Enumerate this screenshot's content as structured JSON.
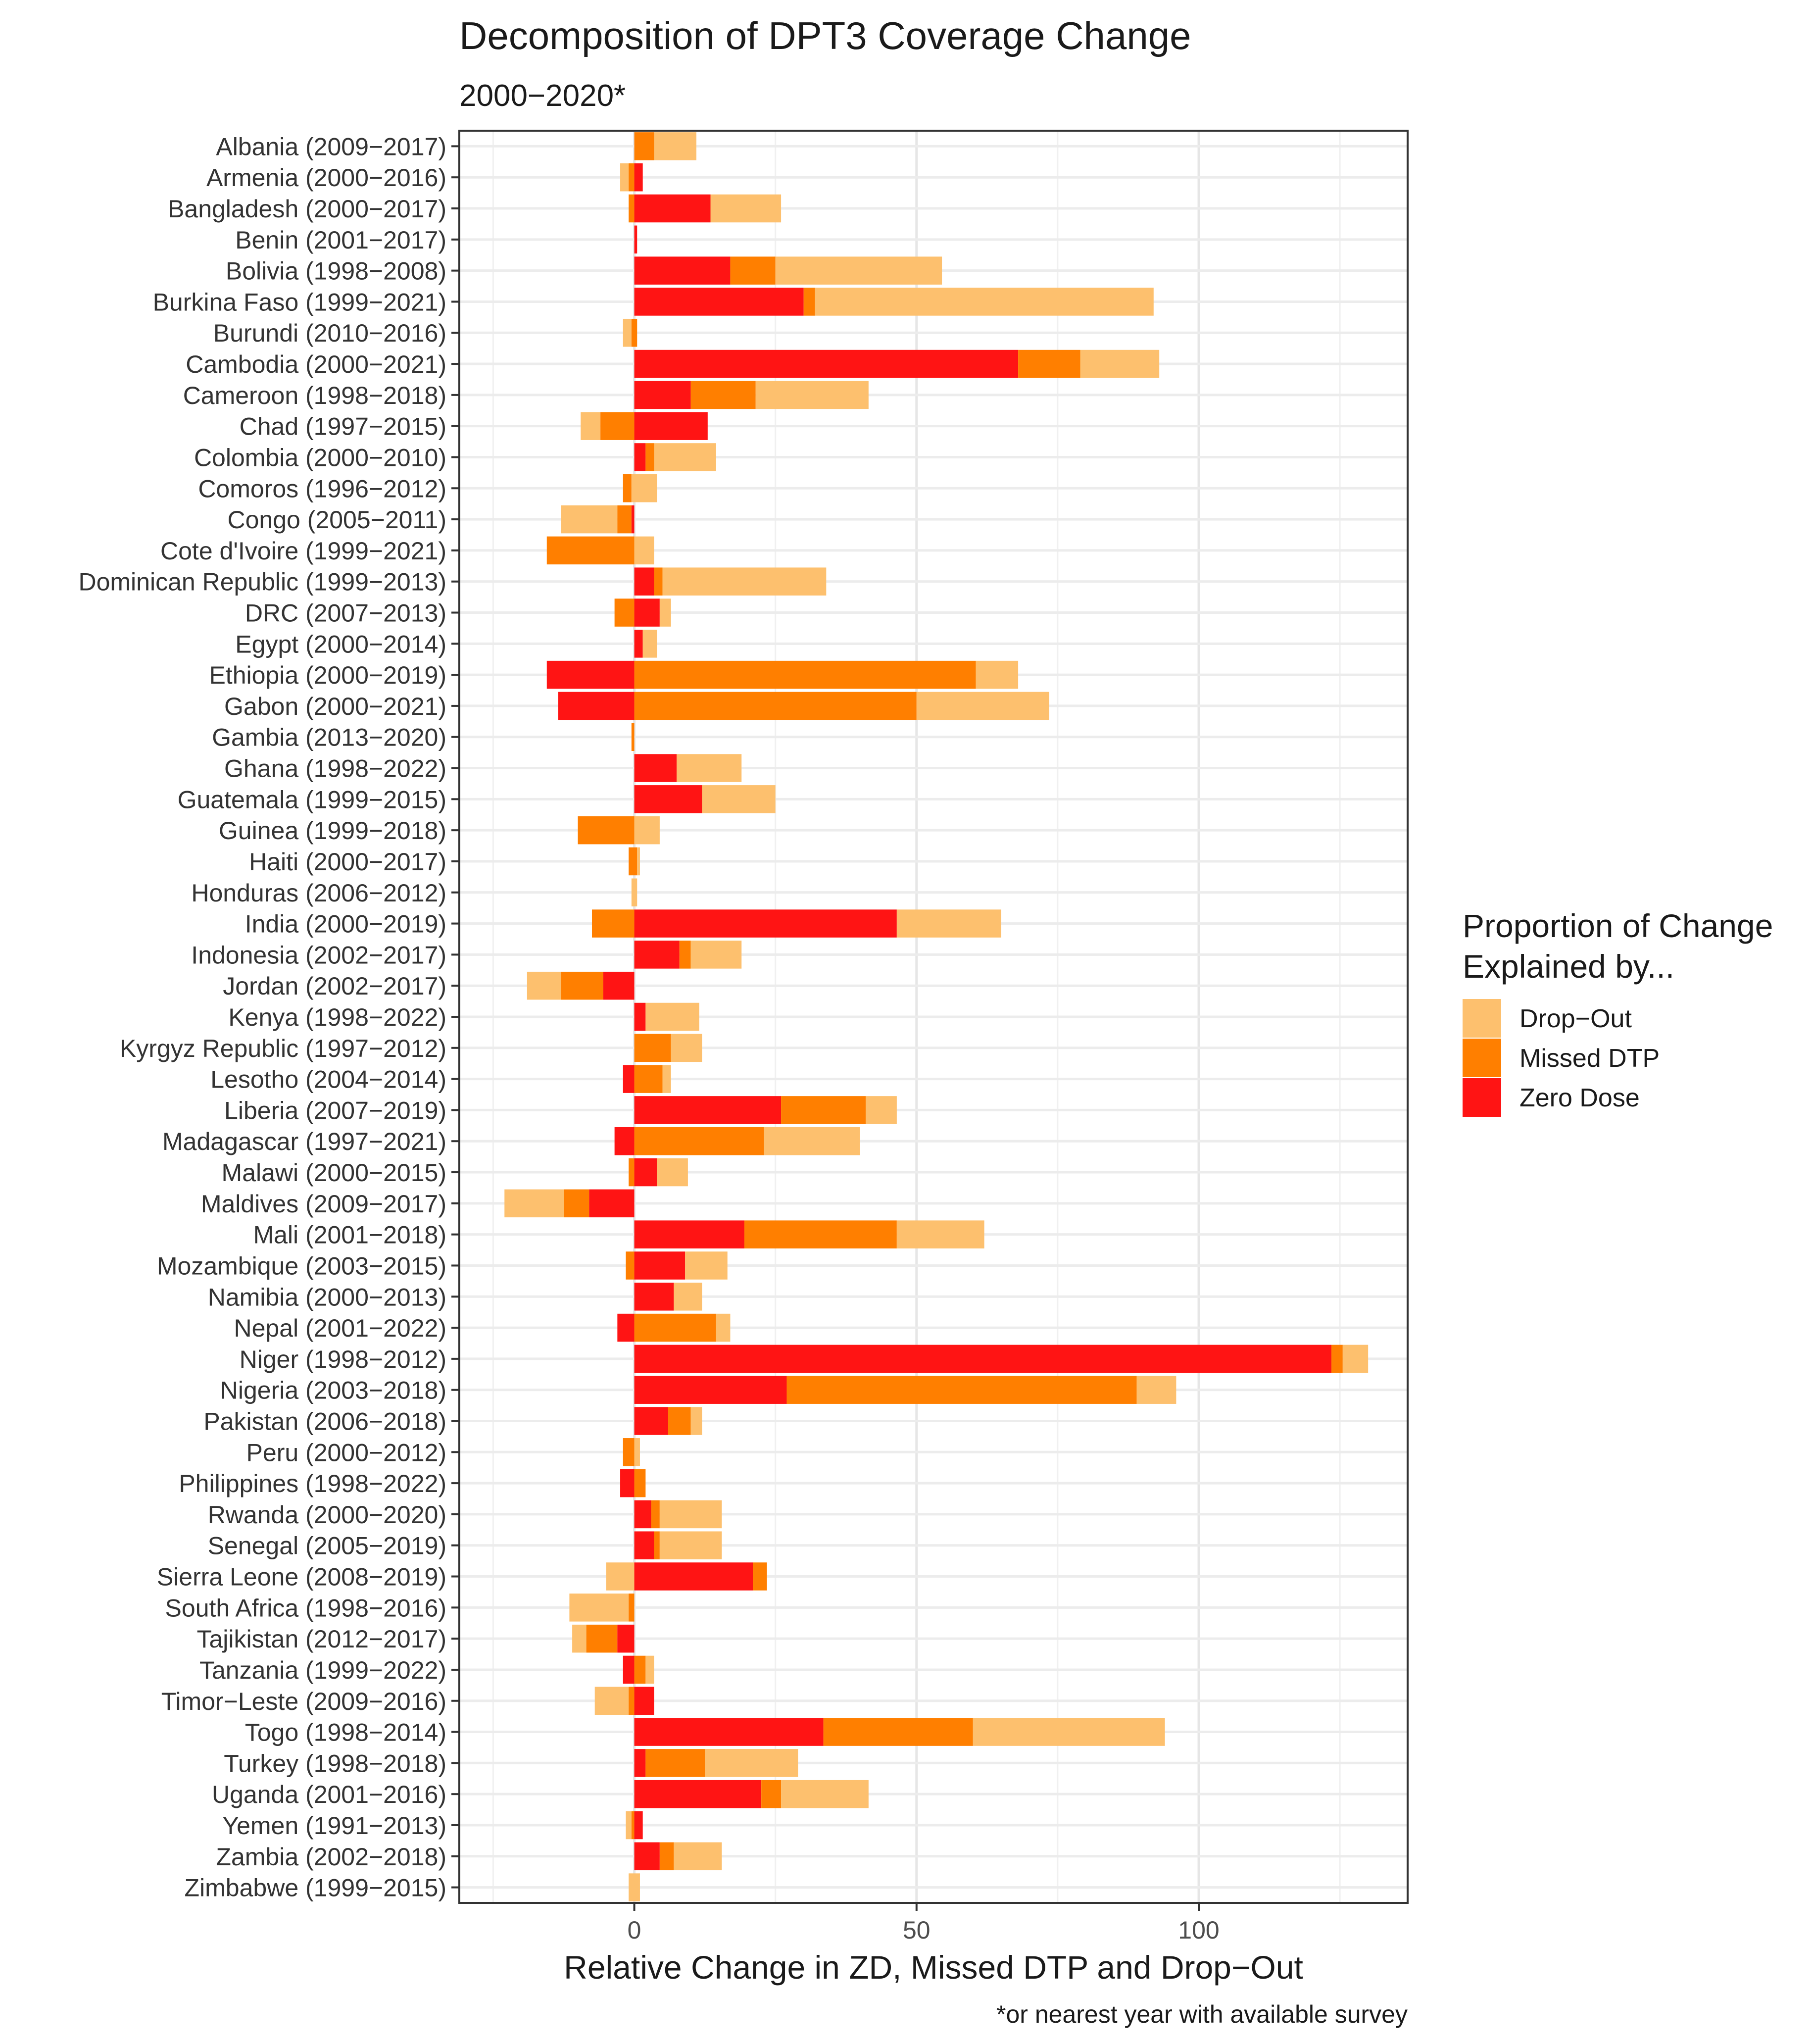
{
  "chart_data": {
    "type": "bar",
    "orientation": "horizontal",
    "stacked": true,
    "title": "Decomposition of DPT3 Coverage Change",
    "subtitle": "2000−2020*",
    "xlabel": "Relative Change in ZD, Missed DTP and Drop−Out",
    "ylabel": "",
    "caption": "*or nearest year with available survey",
    "xlim": [
      -31,
      137
    ],
    "x_ticks": [
      0,
      50,
      100
    ],
    "x_tick_labels": [
      "0",
      "50",
      "100"
    ],
    "grid": true,
    "legend": {
      "title_line1": "Proportion of Change",
      "title_line2": "Explained by...",
      "placement": "right",
      "entries": [
        {
          "label": "Drop−Out",
          "color": "#FDC06E"
        },
        {
          "label": "Missed DTP",
          "color": "#FF7F00"
        },
        {
          "label": "Zero Dose",
          "color": "#FF1414"
        }
      ]
    },
    "series": [
      {
        "name": "Zero Dose",
        "color": "#FF1414"
      },
      {
        "name": "Missed DTP",
        "color": "#FF7F00"
      },
      {
        "name": "Drop−Out",
        "color": "#FDC06E"
      }
    ],
    "categories": [
      "Albania (2009−2017)",
      "Armenia (2000−2016)",
      "Bangladesh (2000−2017)",
      "Benin (2001−2017)",
      "Bolivia (1998−2008)",
      "Burkina Faso (1999−2021)",
      "Burundi (2010−2016)",
      "Cambodia (2000−2021)",
      "Cameroon (1998−2018)",
      "Chad (1997−2015)",
      "Colombia (2000−2010)",
      "Comoros (1996−2012)",
      "Congo (2005−2011)",
      "Cote d'Ivoire (1999−2021)",
      "Dominican Republic (1999−2013)",
      "DRC (2007−2013)",
      "Egypt (2000−2014)",
      "Ethiopia (2000−2019)",
      "Gabon (2000−2021)",
      "Gambia (2013−2020)",
      "Ghana (1998−2022)",
      "Guatemala (1999−2015)",
      "Guinea (1999−2018)",
      "Haiti (2000−2017)",
      "Honduras (2006−2012)",
      "India (2000−2019)",
      "Indonesia (2002−2017)",
      "Jordan (2002−2017)",
      "Kenya (1998−2022)",
      "Kyrgyz Republic (1997−2012)",
      "Lesotho (2004−2014)",
      "Liberia (2007−2019)",
      "Madagascar (1997−2021)",
      "Malawi (2000−2015)",
      "Maldives (2009−2017)",
      "Mali (2001−2018)",
      "Mozambique (2003−2015)",
      "Namibia (2000−2013)",
      "Nepal (2001−2022)",
      "Niger (1998−2012)",
      "Nigeria (2003−2018)",
      "Pakistan (2006−2018)",
      "Peru (2000−2012)",
      "Philippines (1998−2022)",
      "Rwanda (2000−2020)",
      "Senegal (2005−2019)",
      "Sierra Leone (2008−2019)",
      "South Africa (1998−2016)",
      "Tajikistan (2012−2017)",
      "Tanzania (1999−2022)",
      "Timor−Leste (2009−2016)",
      "Togo (1998−2014)",
      "Turkey (1998−2018)",
      "Uganda (2001−2016)",
      "Yemen (1991−2013)",
      "Zambia (2002−2018)",
      "Zimbabwe (1999−2015)"
    ],
    "segments": [
      [
        [
          "Missed DTP",
          0,
          3.5
        ],
        [
          "Drop−Out",
          3.5,
          11
        ]
      ],
      [
        [
          "Drop−Out",
          -2.5,
          -1
        ],
        [
          "Missed DTP",
          -1,
          0
        ],
        [
          "Zero Dose",
          0,
          1.5
        ]
      ],
      [
        [
          "Missed DTP",
          -1,
          0
        ],
        [
          "Zero Dose",
          0,
          13.5
        ],
        [
          "Drop−Out",
          13.5,
          26
        ]
      ],
      [
        [
          "Zero Dose",
          0,
          0.5
        ]
      ],
      [
        [
          "Zero Dose",
          0,
          17
        ],
        [
          "Missed DTP",
          17,
          25
        ],
        [
          "Drop−Out",
          25,
          54.5
        ]
      ],
      [
        [
          "Zero Dose",
          0,
          30
        ],
        [
          "Missed DTP",
          30,
          32
        ],
        [
          "Drop−Out",
          32,
          92
        ]
      ],
      [
        [
          "Drop−Out",
          -2,
          -0.5
        ],
        [
          "Missed DTP",
          -0.5,
          0.5
        ]
      ],
      [
        [
          "Zero Dose",
          0,
          68
        ],
        [
          "Missed DTP",
          68,
          79
        ],
        [
          "Drop−Out",
          79,
          93
        ]
      ],
      [
        [
          "Zero Dose",
          0,
          10
        ],
        [
          "Missed DTP",
          10,
          21.5
        ],
        [
          "Drop−Out",
          21.5,
          41.5
        ]
      ],
      [
        [
          "Drop−Out",
          -9.5,
          -6
        ],
        [
          "Missed DTP",
          -6,
          0
        ],
        [
          "Zero Dose",
          0,
          13
        ]
      ],
      [
        [
          "Zero Dose",
          0,
          2
        ],
        [
          "Missed DTP",
          2,
          3.5
        ],
        [
          "Drop−Out",
          3.5,
          14.5
        ]
      ],
      [
        [
          "Missed DTP",
          -2,
          -0.5
        ],
        [
          "Drop−Out",
          -0.5,
          4
        ]
      ],
      [
        [
          "Drop−Out",
          -13,
          -3
        ],
        [
          "Missed DTP",
          -3,
          -0.5
        ],
        [
          "Zero Dose",
          -0.5,
          0
        ]
      ],
      [
        [
          "Missed DTP",
          -15.5,
          0
        ],
        [
          "Drop−Out",
          0,
          3.5
        ]
      ],
      [
        [
          "Zero Dose",
          0,
          3.5
        ],
        [
          "Missed DTP",
          3.5,
          5
        ],
        [
          "Drop−Out",
          5,
          34
        ]
      ],
      [
        [
          "Missed DTP",
          -3.5,
          0
        ],
        [
          "Zero Dose",
          0,
          4.5
        ],
        [
          "Drop−Out",
          4.5,
          6.5
        ]
      ],
      [
        [
          "Zero Dose",
          0,
          1.5
        ],
        [
          "Drop−Out",
          1.5,
          4
        ]
      ],
      [
        [
          "Zero Dose",
          -15.5,
          0
        ],
        [
          "Missed DTP",
          0,
          60.5
        ],
        [
          "Drop−Out",
          60.5,
          68
        ]
      ],
      [
        [
          "Zero Dose",
          -13.5,
          0
        ],
        [
          "Missed DTP",
          0,
          50
        ],
        [
          "Drop−Out",
          50,
          73.5
        ]
      ],
      [
        [
          "Missed DTP",
          -0.5,
          0
        ]
      ],
      [
        [
          "Zero Dose",
          0,
          7.5
        ],
        [
          "Drop−Out",
          7.5,
          19
        ]
      ],
      [
        [
          "Zero Dose",
          0,
          12
        ],
        [
          "Drop−Out",
          12,
          25
        ]
      ],
      [
        [
          "Missed DTP",
          -10,
          0
        ],
        [
          "Drop−Out",
          0,
          4.5
        ]
      ],
      [
        [
          "Missed DTP",
          -1,
          0.5
        ],
        [
          "Drop−Out",
          0.5,
          1
        ]
      ],
      [
        [
          "Drop−Out",
          -0.5,
          0.5
        ]
      ],
      [
        [
          "Missed DTP",
          -7.5,
          0
        ],
        [
          "Zero Dose",
          0,
          46.5
        ],
        [
          "Drop−Out",
          46.5,
          65
        ]
      ],
      [
        [
          "Zero Dose",
          0,
          8
        ],
        [
          "Missed DTP",
          8,
          10
        ],
        [
          "Drop−Out",
          10,
          19
        ]
      ],
      [
        [
          "Drop−Out",
          -19,
          -13
        ],
        [
          "Missed DTP",
          -13,
          -5.5
        ],
        [
          "Zero Dose",
          -5.5,
          0
        ]
      ],
      [
        [
          "Zero Dose",
          0,
          2
        ],
        [
          "Drop−Out",
          2,
          11.5
        ]
      ],
      [
        [
          "Missed DTP",
          0,
          6.5
        ],
        [
          "Drop−Out",
          6.5,
          12
        ]
      ],
      [
        [
          "Zero Dose",
          -2,
          0
        ],
        [
          "Missed DTP",
          0,
          5
        ],
        [
          "Drop−Out",
          5,
          6.5
        ]
      ],
      [
        [
          "Zero Dose",
          0,
          26
        ],
        [
          "Missed DTP",
          26,
          41
        ],
        [
          "Drop−Out",
          41,
          46.5
        ]
      ],
      [
        [
          "Zero Dose",
          -3.5,
          0
        ],
        [
          "Missed DTP",
          0,
          23
        ],
        [
          "Drop−Out",
          23,
          40
        ]
      ],
      [
        [
          "Missed DTP",
          -1,
          0
        ],
        [
          "Zero Dose",
          0,
          4
        ],
        [
          "Drop−Out",
          4,
          9.5
        ]
      ],
      [
        [
          "Drop−Out",
          -23,
          -12.5
        ],
        [
          "Missed DTP",
          -12.5,
          -8
        ],
        [
          "Zero Dose",
          -8,
          0
        ]
      ],
      [
        [
          "Zero Dose",
          0,
          19.5
        ],
        [
          "Missed DTP",
          19.5,
          46.5
        ],
        [
          "Drop−Out",
          46.5,
          62
        ]
      ],
      [
        [
          "Missed DTP",
          -1.5,
          0
        ],
        [
          "Zero Dose",
          0,
          9
        ],
        [
          "Drop−Out",
          9,
          16.5
        ]
      ],
      [
        [
          "Zero Dose",
          0,
          7
        ],
        [
          "Drop−Out",
          7,
          12
        ]
      ],
      [
        [
          "Zero Dose",
          -3,
          0
        ],
        [
          "Missed DTP",
          0,
          14.5
        ],
        [
          "Drop−Out",
          14.5,
          17
        ]
      ],
      [
        [
          "Zero Dose",
          0,
          123.5
        ],
        [
          "Missed DTP",
          123.5,
          125.5
        ],
        [
          "Drop−Out",
          125.5,
          130
        ]
      ],
      [
        [
          "Zero Dose",
          0,
          27
        ],
        [
          "Missed DTP",
          27,
          89
        ],
        [
          "Drop−Out",
          89,
          96
        ]
      ],
      [
        [
          "Zero Dose",
          0,
          6
        ],
        [
          "Missed DTP",
          6,
          10
        ],
        [
          "Drop−Out",
          10,
          12
        ]
      ],
      [
        [
          "Missed DTP",
          -2,
          0
        ],
        [
          "Drop−Out",
          0,
          1
        ]
      ],
      [
        [
          "Zero Dose",
          -2.5,
          0
        ],
        [
          "Missed DTP",
          0,
          2
        ]
      ],
      [
        [
          "Zero Dose",
          0,
          3
        ],
        [
          "Missed DTP",
          3,
          4.5
        ],
        [
          "Drop−Out",
          4.5,
          15.5
        ]
      ],
      [
        [
          "Zero Dose",
          0,
          3.5
        ],
        [
          "Missed DTP",
          3.5,
          4.5
        ],
        [
          "Drop−Out",
          4.5,
          15.5
        ]
      ],
      [
        [
          "Drop−Out",
          -5,
          0
        ],
        [
          "Zero Dose",
          0,
          21
        ],
        [
          "Missed DTP",
          21,
          23.5
        ]
      ],
      [
        [
          "Drop−Out",
          -11.5,
          -1
        ],
        [
          "Missed DTP",
          -1,
          0
        ]
      ],
      [
        [
          "Drop−Out",
          -11,
          -8.5
        ],
        [
          "Missed DTP",
          -8.5,
          -3
        ],
        [
          "Zero Dose",
          -3,
          0
        ]
      ],
      [
        [
          "Zero Dose",
          -2,
          0
        ],
        [
          "Missed DTP",
          0,
          2
        ],
        [
          "Drop−Out",
          2,
          3.5
        ]
      ],
      [
        [
          "Drop−Out",
          -7,
          -1
        ],
        [
          "Missed DTP",
          -1,
          0
        ],
        [
          "Zero Dose",
          0,
          3.5
        ]
      ],
      [
        [
          "Zero Dose",
          0,
          33.5
        ],
        [
          "Missed DTP",
          33.5,
          60
        ],
        [
          "Drop−Out",
          60,
          94
        ]
      ],
      [
        [
          "Zero Dose",
          0,
          2
        ],
        [
          "Missed DTP",
          2,
          12.5
        ],
        [
          "Drop−Out",
          12.5,
          29
        ]
      ],
      [
        [
          "Zero Dose",
          0,
          22.5
        ],
        [
          "Missed DTP",
          22.5,
          26
        ],
        [
          "Drop−Out",
          26,
          41.5
        ]
      ],
      [
        [
          "Drop−Out",
          -1.5,
          -0.5
        ],
        [
          "Missed DTP",
          -0.5,
          0
        ],
        [
          "Zero Dose",
          0,
          1.5
        ]
      ],
      [
        [
          "Zero Dose",
          0,
          4.5
        ],
        [
          "Missed DTP",
          4.5,
          7
        ],
        [
          "Drop−Out",
          7,
          15.5
        ]
      ],
      [
        [
          "Drop−Out",
          -1,
          1
        ]
      ]
    ]
  }
}
